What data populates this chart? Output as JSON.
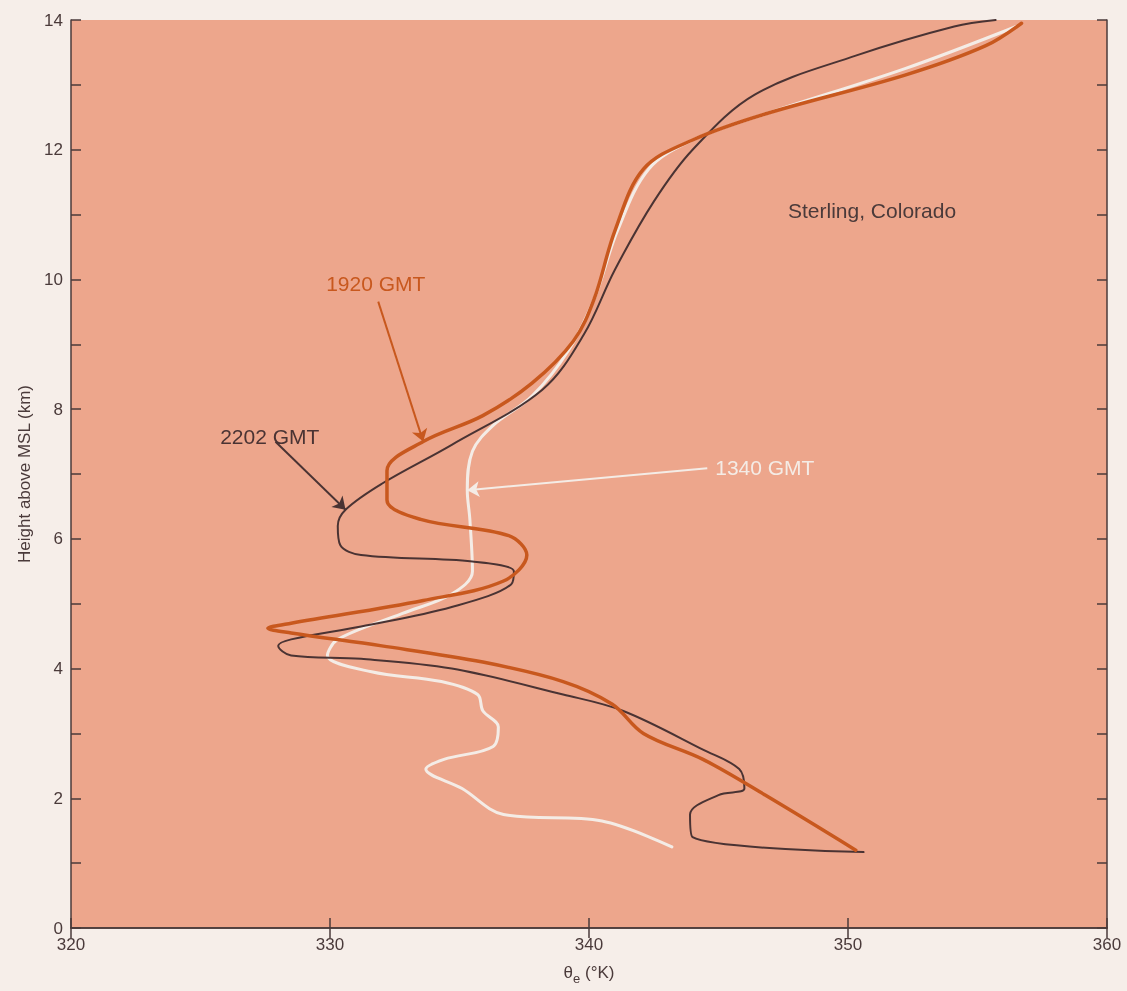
{
  "chart_data": {
    "type": "line",
    "xlabel": "θ$_{e}$ (°K)",
    "ylabel": "Height above MSL (km)",
    "xlim": [
      320,
      360
    ],
    "xticks": [
      320,
      330,
      340,
      350,
      360
    ],
    "ylim": [
      0,
      14
    ],
    "yticks": [
      0,
      {
        "value": 1,
        "label": null
      },
      2,
      {
        "value": 3,
        "label": null
      },
      4,
      {
        "value": 5,
        "label": null
      },
      6,
      {
        "value": 7,
        "label": null
      },
      8,
      {
        "value": 9,
        "label": null
      },
      10,
      {
        "value": 11,
        "label": null
      },
      12,
      {
        "value": 13,
        "label": null
      },
      14
    ],
    "grid": false,
    "legend": false,
    "marker": "none",
    "line_style": "solid",
    "annotations": [
      "Sterling, Colorado"
    ],
    "series": [
      {
        "name": "1920 GMT",
        "color": "#c8581e",
        "x": [
          350.3,
          346.8,
          344.4,
          342.1,
          340.9,
          339.0,
          335.9,
          332.0,
          328.5,
          327.6,
          328.5,
          333.6,
          336.7,
          337.6,
          336.9,
          333.5,
          332.2,
          332.2,
          333.6,
          335.9,
          337.8,
          339.4,
          340.2,
          341.0,
          342.1,
          344.0,
          346.8,
          352.2,
          355.3,
          356.7
        ],
        "values": [
          1.2,
          2.05,
          2.6,
          3.0,
          3.45,
          3.8,
          4.1,
          4.35,
          4.55,
          4.62,
          4.7,
          5.05,
          5.35,
          5.75,
          6.05,
          6.3,
          6.6,
          7.05,
          7.5,
          7.9,
          8.4,
          9.05,
          9.7,
          10.75,
          11.7,
          12.15,
          12.55,
          13.15,
          13.6,
          13.95
        ]
      },
      {
        "name": "2202 GMT",
        "color": "#4a3333",
        "x": [
          350.6,
          344.0,
          343.9,
          345.0,
          346.0,
          345.8,
          344.4,
          341.3,
          339.0,
          334.7,
          331.2,
          328.5,
          328.0,
          328.5,
          331.2,
          334.7,
          337.0,
          337.1,
          335.5,
          331.2,
          330.4,
          330.3,
          330.6,
          332.0,
          334.7,
          338.2,
          339.8,
          341.0,
          342.5,
          344.0,
          346.4,
          350.3,
          354.1,
          355.7
        ],
        "values": [
          1.17,
          1.4,
          1.75,
          2.05,
          2.15,
          2.45,
          2.75,
          3.35,
          3.6,
          4.0,
          4.15,
          4.2,
          4.35,
          4.45,
          4.65,
          4.95,
          5.3,
          5.5,
          5.65,
          5.75,
          5.9,
          6.2,
          6.45,
          6.85,
          7.45,
          8.3,
          9.15,
          10.15,
          11.2,
          12.0,
          12.85,
          13.45,
          13.9,
          14.0
        ]
      },
      {
        "name": "1340 GMT",
        "color": "#f4ece6",
        "x": [
          343.2,
          340.5,
          336.7,
          335.1,
          333.7,
          334.4,
          336.3,
          336.5,
          335.9,
          335.7,
          334.3,
          331.6,
          329.9,
          330.3,
          332.8,
          334.7,
          335.5,
          335.4,
          335.3,
          335.5,
          336.3,
          337.8,
          339.2,
          340.2,
          341.1,
          342.3,
          344.0,
          346.8,
          352.2,
          356.5
        ],
        "values": [
          1.25,
          1.65,
          1.75,
          2.15,
          2.45,
          2.6,
          2.8,
          3.1,
          3.35,
          3.6,
          3.8,
          3.95,
          4.2,
          4.45,
          4.85,
          5.15,
          5.5,
          6.3,
          6.75,
          7.35,
          7.75,
          8.2,
          8.9,
          9.7,
          10.75,
          11.7,
          12.15,
          12.55,
          13.25,
          13.9
        ]
      }
    ]
  }
}
